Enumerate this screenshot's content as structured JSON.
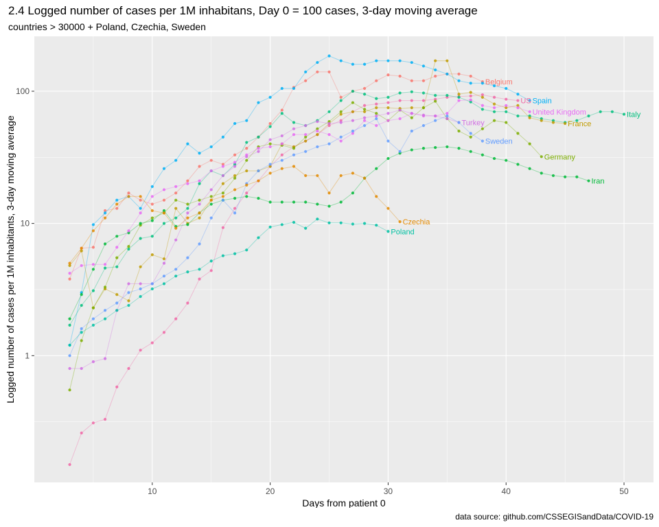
{
  "title": "2.4 Logged number of cases per 1M inhabitans, Day 0 = 100 cases, 3-day moving average",
  "subtitle": "countries > 30000 + Poland, Czechia, Sweden",
  "caption": "data source: github.com/CSSEGISandData/COVID-19",
  "chart_data": {
    "type": "scatter",
    "title": "2.4 Logged number of cases per 1M inhabitans, Day 0 = 100 cases, 3-day moving average",
    "xlabel": "Days from patient 0",
    "ylabel": "Logged number of cases per 1M inhabitants, 3-day moving average",
    "xlim": [
      0,
      52.5
    ],
    "ylim": [
      0.11,
      260
    ],
    "y_scale": "log10",
    "x_ticks": [
      10,
      20,
      30,
      40,
      50
    ],
    "y_ticks": [
      1,
      10,
      100
    ],
    "y_tick_labels": [
      "1",
      "10",
      "100"
    ],
    "background": "#EBEBEB",
    "grid": true,
    "legend": "none",
    "series": [
      {
        "name": "Belgium",
        "color": "#F8766D",
        "x": [
          3,
          4,
          5,
          6,
          7,
          8,
          9,
          10,
          11,
          12,
          13,
          14,
          15,
          16,
          17,
          18,
          19,
          20,
          21,
          22,
          23,
          24,
          25,
          26,
          27,
          28,
          29,
          30,
          31,
          32,
          33,
          34,
          35,
          36,
          37,
          38
        ],
        "y": [
          3.8,
          6.5,
          6.6,
          12.5,
          13,
          17,
          15,
          14,
          15,
          17,
          21,
          27,
          30,
          28,
          33,
          37,
          45,
          57,
          72,
          107,
          120,
          140,
          140,
          90,
          100,
          105,
          120,
          133,
          130,
          120,
          120,
          130,
          135,
          135,
          130,
          118
        ]
      },
      {
        "name": "US",
        "color": "#F067A6",
        "x": [
          3,
          4,
          5,
          6,
          7,
          8,
          9,
          10,
          11,
          12,
          13,
          14,
          15,
          16,
          17,
          18,
          19,
          20,
          21,
          22,
          23,
          24,
          25,
          26,
          27,
          28,
          29,
          30,
          31,
          32,
          33,
          34,
          35,
          36,
          37,
          38,
          39,
          40,
          41
        ],
        "y": [
          0.15,
          0.26,
          0.31,
          0.33,
          0.58,
          0.8,
          1.1,
          1.25,
          1.5,
          1.9,
          2.5,
          3.8,
          4.4,
          9.3,
          13,
          17,
          21,
          27,
          33,
          38,
          42,
          47,
          55,
          60,
          70,
          78,
          80,
          82,
          85,
          85,
          85,
          87,
          90,
          91,
          92,
          94,
          90,
          87,
          85
        ]
      },
      {
        "name": "Spain",
        "color": "#00B0F6",
        "x": [
          3,
          4,
          5,
          6,
          7,
          8,
          9,
          10,
          11,
          12,
          13,
          14,
          15,
          16,
          17,
          18,
          19,
          20,
          21,
          22,
          23,
          24,
          25,
          26,
          27,
          28,
          29,
          30,
          31,
          32,
          33,
          34,
          35,
          36,
          37,
          38,
          39,
          40,
          41,
          42
        ],
        "y": [
          1.2,
          3.0,
          9.8,
          12,
          15,
          16,
          13,
          19,
          26,
          30,
          40,
          34,
          38,
          45,
          57,
          60,
          82,
          90,
          105,
          105,
          140,
          165,
          185,
          170,
          160,
          160,
          170,
          170,
          170,
          165,
          155,
          145,
          135,
          120,
          115,
          115,
          110,
          105,
          95,
          85
        ]
      },
      {
        "name": "Italy",
        "color": "#00BF7D",
        "x": [
          3,
          4,
          5,
          6,
          7,
          8,
          9,
          10,
          11,
          12,
          13,
          14,
          15,
          16,
          17,
          18,
          19,
          20,
          21,
          22,
          23,
          24,
          25,
          26,
          27,
          28,
          29,
          30,
          31,
          32,
          33,
          34,
          35,
          36,
          37,
          38,
          39,
          40,
          41,
          42,
          43,
          44,
          45,
          46,
          47,
          48,
          49,
          50
        ],
        "y": [
          1.7,
          2.4,
          3.1,
          4.6,
          4.7,
          6.4,
          7.7,
          8,
          10,
          11,
          13,
          20,
          25,
          23,
          28,
          41,
          45,
          54,
          68,
          58,
          55,
          60,
          70,
          85,
          100,
          95,
          88,
          90,
          97,
          99,
          97,
          93,
          93,
          90,
          83,
          73,
          70,
          70,
          65,
          65,
          62,
          60,
          58,
          60,
          65,
          70,
          70,
          67
        ]
      },
      {
        "name": "France",
        "color": "#C09B00",
        "x": [
          3,
          4,
          5,
          6,
          7,
          8,
          9,
          10,
          11,
          12,
          13,
          14,
          15,
          16,
          17,
          18,
          19,
          20,
          21,
          22,
          23,
          24,
          25,
          26,
          27,
          28,
          29,
          30,
          31,
          32,
          33,
          34,
          35,
          36,
          37,
          38,
          39,
          40,
          41,
          42,
          43,
          44,
          45
        ],
        "y": [
          4.8,
          6.2,
          2.3,
          3.2,
          2.9,
          2.6,
          4.7,
          5.8,
          5.4,
          13,
          10,
          11,
          15,
          20,
          23,
          25,
          25,
          27,
          40,
          38,
          42,
          47,
          57,
          67,
          70,
          70,
          75,
          75,
          74,
          75,
          75,
          170,
          170,
          95,
          98,
          90,
          80,
          75,
          78,
          63,
          60,
          58,
          57
        ]
      },
      {
        "name": "Germany",
        "color": "#7CAE00",
        "x": [
          3,
          4,
          5,
          6,
          7,
          8,
          9,
          10,
          11,
          12,
          13,
          14,
          15,
          16,
          17,
          18,
          19,
          20,
          21,
          22,
          23,
          24,
          25,
          26,
          27,
          28,
          29,
          30,
          31,
          32,
          33,
          34,
          35,
          36,
          37,
          38,
          39,
          40,
          41,
          42,
          43
        ],
        "y": [
          0.55,
          1.3,
          2.3,
          3.3,
          5.5,
          6.7,
          9.7,
          11,
          12,
          15,
          14,
          15,
          16,
          17,
          22,
          30,
          38,
          40,
          39,
          37,
          45,
          52,
          59,
          70,
          82,
          73,
          68,
          60,
          72,
          63,
          75,
          84,
          62,
          50,
          45,
          52,
          60,
          58,
          48,
          40,
          32
        ]
      },
      {
        "name": "Iran",
        "color": "#00BA38",
        "x": [
          3,
          4,
          5,
          6,
          7,
          8,
          9,
          10,
          11,
          12,
          13,
          14,
          15,
          16,
          17,
          18,
          19,
          20,
          21,
          22,
          23,
          24,
          25,
          26,
          27,
          28,
          29,
          30,
          31,
          32,
          33,
          34,
          35,
          36,
          37,
          38,
          39,
          40,
          41,
          42,
          43,
          44,
          45,
          46,
          47
        ],
        "y": [
          1.9,
          2.9,
          4.5,
          7.0,
          8.0,
          8.5,
          10,
          10.5,
          12.5,
          9.5,
          9.8,
          12,
          14,
          15,
          15.5,
          16,
          15.5,
          14.5,
          14.5,
          14.5,
          14.5,
          14,
          13.5,
          14.5,
          17,
          22,
          26,
          31,
          34,
          36,
          37,
          37.5,
          38,
          37,
          35,
          33,
          31,
          30,
          28,
          26,
          24,
          23,
          22.5,
          22.5,
          21
        ]
      },
      {
        "name": "United Kingdom",
        "color": "#E76BF3",
        "x": [
          3,
          4,
          5,
          6,
          7,
          8,
          9,
          10,
          11,
          12,
          13,
          14,
          15,
          16,
          17,
          18,
          19,
          20,
          21,
          22,
          23,
          24,
          25,
          26,
          27,
          28,
          29,
          30,
          31,
          32,
          33,
          34,
          35,
          36,
          37,
          38,
          39,
          40,
          41,
          42
        ],
        "y": [
          4.2,
          4.8,
          4.9,
          4.9,
          6.6,
          8.8,
          12,
          16,
          18,
          19,
          20,
          21,
          25,
          27,
          29,
          33,
          37,
          38,
          40,
          47,
          47,
          50,
          47,
          42,
          48,
          60,
          55,
          60,
          62,
          68,
          65,
          65,
          68,
          85,
          86,
          78,
          75,
          78,
          75,
          70
        ]
      },
      {
        "name": "Turkey",
        "color": "#D16FE3",
        "x": [
          3,
          4,
          5,
          6,
          7,
          8,
          9,
          10,
          11,
          12,
          13,
          14,
          15,
          16,
          17,
          18,
          19,
          20,
          21,
          22,
          23,
          24,
          25,
          26,
          27,
          28,
          29,
          30,
          31,
          32,
          33,
          34,
          35,
          36
        ],
        "y": [
          0.8,
          0.8,
          0.9,
          0.95,
          2.2,
          3.5,
          3.5,
          3.5,
          5,
          7.5,
          12,
          14,
          18,
          23,
          27,
          32,
          35,
          43,
          46,
          52,
          55,
          59,
          57,
          58,
          60,
          63,
          65,
          68,
          72,
          68,
          66,
          65,
          62,
          58
        ]
      },
      {
        "name": "Sweden",
        "color": "#619CFF",
        "x": [
          3,
          4,
          5,
          6,
          7,
          8,
          9,
          10,
          11,
          12,
          13,
          14,
          15,
          16,
          17,
          18,
          19,
          20,
          21,
          22,
          23,
          24,
          25,
          26,
          27,
          28,
          29,
          30,
          31,
          32,
          33,
          34,
          35,
          36,
          37,
          38
        ],
        "y": [
          1.0,
          1.6,
          1.9,
          2.2,
          2.5,
          3.0,
          3.2,
          3.5,
          4,
          4.5,
          5.5,
          7,
          11,
          15,
          12,
          20,
          25,
          28,
          30,
          33,
          35,
          38,
          40,
          45,
          50,
          55,
          62,
          42,
          35,
          50,
          55,
          60,
          65,
          58,
          48,
          42
        ]
      },
      {
        "name": "Czechia",
        "color": "#E38900",
        "x": [
          3,
          4,
          5,
          6,
          7,
          8,
          9,
          10,
          11,
          12,
          13,
          14,
          15,
          16,
          17,
          18,
          19,
          20,
          21,
          22,
          23,
          24,
          25,
          26,
          27,
          28,
          29,
          30,
          31
        ],
        "y": [
          5.0,
          6.5,
          8.8,
          11,
          14,
          16,
          16,
          12.5,
          12,
          9.2,
          11,
          12,
          15,
          16,
          18,
          19.5,
          21,
          24,
          26,
          27,
          23,
          23,
          17,
          23,
          24,
          22,
          16,
          13,
          10.3
        ]
      },
      {
        "name": "Poland",
        "color": "#00C1A3",
        "x": [
          3,
          4,
          5,
          6,
          7,
          8,
          9,
          10,
          11,
          12,
          13,
          14,
          15,
          16,
          17,
          18,
          19,
          20,
          21,
          22,
          23,
          24,
          25,
          26,
          27,
          28,
          29,
          30
        ],
        "y": [
          1.2,
          1.5,
          1.7,
          1.9,
          2.2,
          2.4,
          2.8,
          3.2,
          3.5,
          4,
          4.3,
          4.5,
          5.2,
          5.7,
          5.9,
          6.3,
          7.8,
          9.4,
          9.8,
          10.2,
          9.2,
          10.8,
          10.1,
          10.1,
          9.9,
          10,
          9.7,
          8.7
        ]
      }
    ]
  }
}
